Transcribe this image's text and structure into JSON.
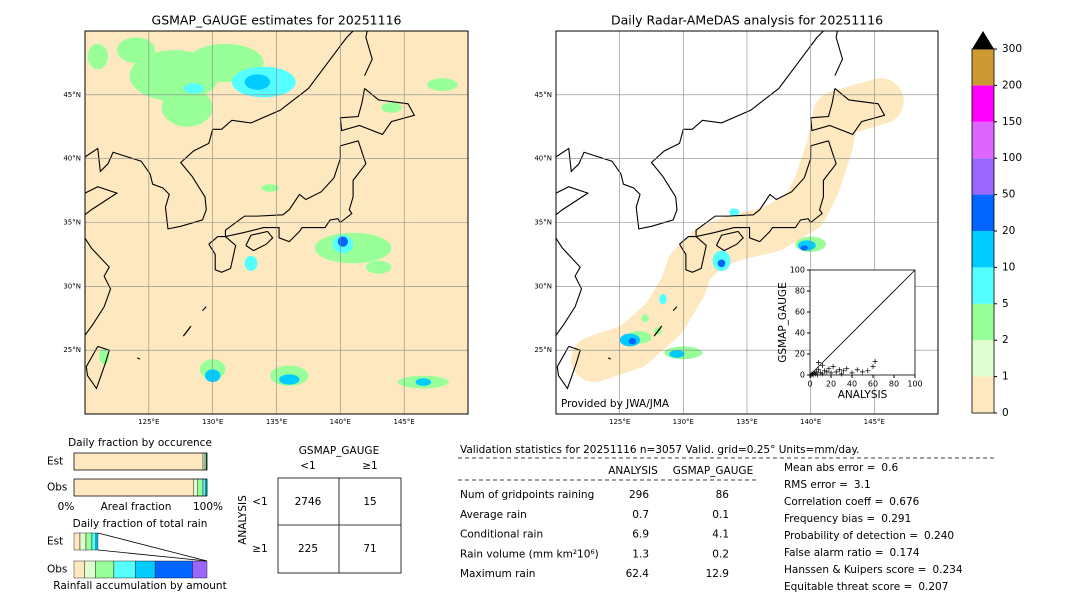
{
  "maps": [
    {
      "title": "GSMAP_GAUGE estimates for 20251116",
      "xlim": [
        120,
        150
      ],
      "ylim": [
        20,
        50
      ],
      "xticks": [
        {
          "value": 125,
          "label": "125°E"
        },
        {
          "value": 130,
          "label": "130°E"
        },
        {
          "value": 135,
          "label": "135°E"
        },
        {
          "value": 140,
          "label": "140°E"
        },
        {
          "value": 145,
          "label": "145°E"
        }
      ],
      "yticks": [
        {
          "value": 45,
          "label": "45°N"
        },
        {
          "value": 40,
          "label": "40°N"
        },
        {
          "value": 35,
          "label": "35°N"
        },
        {
          "value": 30,
          "label": "30°N"
        },
        {
          "value": 25,
          "label": "25°N"
        }
      ]
    },
    {
      "title": "Daily Radar-AMeDAS analysis for 20251116",
      "xlim": [
        120,
        150
      ],
      "ylim": [
        20,
        50
      ],
      "xticks": [
        {
          "value": 125,
          "label": "125°E"
        },
        {
          "value": 130,
          "label": "130°E"
        },
        {
          "value": 135,
          "label": "135°E"
        },
        {
          "value": 140,
          "label": "140°E"
        },
        {
          "value": 145,
          "label": "145°E"
        }
      ],
      "yticks": [
        {
          "value": 45,
          "label": "45°N"
        },
        {
          "value": 40,
          "label": "40°N"
        },
        {
          "value": 35,
          "label": "35°N"
        },
        {
          "value": 30,
          "label": "30°N"
        },
        {
          "value": 25,
          "label": "25°N"
        }
      ],
      "credit": "Provided by JWA/JMA"
    }
  ],
  "scatter": {
    "type": "scatter",
    "xlabel": "ANALYSIS",
    "ylabel": "GSMAP_GAUGE",
    "xlim": [
      0,
      100
    ],
    "ylim": [
      0,
      100
    ],
    "xticks": [
      0,
      20,
      40,
      60,
      80,
      100
    ],
    "yticks": [
      0,
      20,
      40,
      60,
      80,
      100
    ],
    "x": [
      1,
      2,
      3,
      4,
      5,
      6,
      7,
      8,
      10,
      12,
      14,
      16,
      18,
      20,
      22,
      25,
      28,
      30,
      32,
      35,
      40,
      45,
      50,
      55,
      60,
      62,
      8,
      12
    ],
    "y": [
      0,
      1,
      0,
      2,
      1,
      3,
      0,
      5,
      2,
      1,
      4,
      3,
      6,
      2,
      8,
      3,
      5,
      1,
      4,
      6,
      2,
      5,
      3,
      4,
      8,
      13,
      12,
      9
    ]
  },
  "colorbar": {
    "levels": [
      0,
      1,
      2,
      5,
      10,
      20,
      50,
      100,
      150,
      200,
      300
    ],
    "colors": [
      "#fee8c0",
      "#e0ffd0",
      "#99ff99",
      "#55ffff",
      "#00ccff",
      "#0066ff",
      "#9966ff",
      "#dd66ff",
      "#ff00ff",
      "#cc9933"
    ],
    "extend_color": "#000000"
  },
  "occurrence": {
    "title": "Daily fraction by occurence",
    "rows": [
      {
        "label": "Est",
        "values": [
          97,
          1.5,
          1,
          0.5
        ]
      },
      {
        "label": "Obs",
        "values": [
          90,
          3,
          4,
          2,
          1
        ]
      }
    ],
    "axis_labels": [
      "0%",
      "Areal fraction",
      "100%"
    ]
  },
  "total_rain": {
    "title": "Daily fraction of total rain",
    "rows": [
      {
        "label": "Est",
        "values": [
          4.5,
          4.5,
          4.5,
          3,
          1.5
        ]
      },
      {
        "label": "Obs",
        "values": [
          8,
          8,
          14,
          16,
          15,
          28,
          11
        ]
      }
    ],
    "axis_label": "Rainfall accumulation by amount"
  },
  "contingency": {
    "col_title": "GSMAP_GAUGE",
    "row_title": "ANALYSIS",
    "col_labels": [
      "<1",
      "≥1"
    ],
    "row_labels": [
      "<1",
      "≥1"
    ],
    "cells": [
      [
        2746,
        15
      ],
      [
        225,
        71
      ]
    ]
  },
  "validation": {
    "title": "Validation statistics for 20251116  n=3057 Valid. grid=0.25° Units=mm/day.",
    "headers": [
      "ANALYSIS",
      "GSMAP_GAUGE"
    ],
    "rows": [
      [
        "Num of gridpoints raining",
        296,
        86
      ],
      [
        "Average rain",
        0.7,
        0.1
      ],
      [
        "Conditional rain",
        6.9,
        4.1
      ],
      [
        "Rain volume (mm km²10⁶)",
        1.3,
        0.2
      ],
      [
        "Maximum rain",
        62.4,
        12.9
      ]
    ],
    "stats": [
      [
        "Mean abs error =",
        "0.6"
      ],
      [
        "RMS error =",
        "3.1"
      ],
      [
        "Correlation coeff =",
        "0.676"
      ],
      [
        "Frequency bias =",
        "0.291"
      ],
      [
        "Probability of detection =",
        "0.240"
      ],
      [
        "False alarm ratio =",
        "0.174"
      ],
      [
        "Hanssen & Kuipers score =",
        "0.234"
      ],
      [
        "Equitable threat score =",
        "0.207"
      ]
    ]
  }
}
